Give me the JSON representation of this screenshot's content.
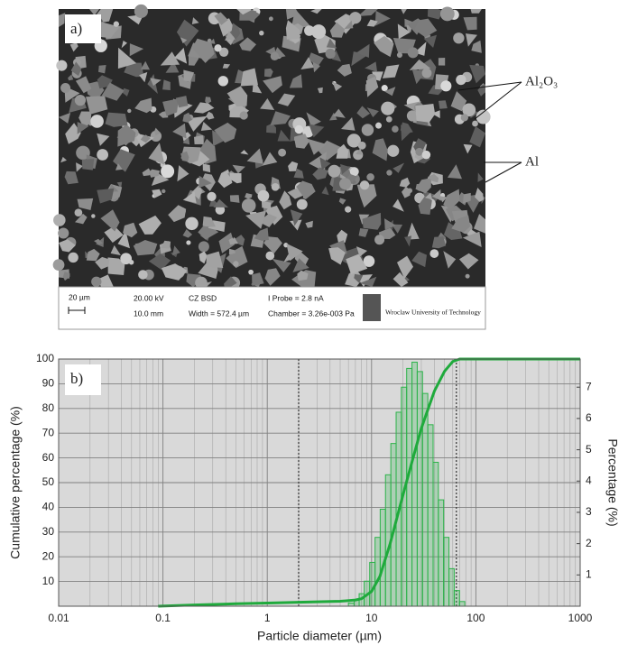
{
  "image_panel": {
    "label": "a)",
    "annotations": [
      "Al₂O₃",
      "Al"
    ],
    "info_bar": {
      "scale": "20 µm",
      "voltage": "20.00 kV",
      "distance": "10.0 mm",
      "detector": "CZ BSD",
      "width": "Width = 572.4 µm",
      "probe": "I Probe =  2.8 nA",
      "chamber": "Chamber = 3.26e-003 Pa",
      "institution": "Wroclaw University of Technology"
    }
  },
  "chart_data": {
    "type": "histogram",
    "label": "b)",
    "xlabel": "Particle diameter (µm)",
    "ylabel": "Cumulative percentage (%)",
    "y2label": "Percentage (%)",
    "xscale": "log",
    "xlim": [
      0.01,
      1000
    ],
    "xticks": [
      0.01,
      0.1,
      1,
      10,
      100,
      1000
    ],
    "ylim": [
      0,
      100
    ],
    "yticks": [
      10,
      20,
      30,
      40,
      50,
      60,
      70,
      80,
      90,
      100
    ],
    "y2lim": [
      0,
      7.9
    ],
    "y2ticks": [
      1,
      2,
      3,
      4,
      5,
      6,
      7
    ],
    "grid": true,
    "reference_lines": [
      2,
      65
    ],
    "series": [
      {
        "type": "histogram",
        "axis": "y2",
        "color": "#2db34a",
        "bins": [
          6.0,
          6.8,
          7.6,
          8.5,
          9.6,
          10.8,
          12.1,
          13.6,
          15.3,
          17.2,
          19.3,
          21.7,
          24.4,
          27.4,
          30.8,
          34.6,
          38.9,
          43.7,
          49.1,
          55.2,
          62.0,
          69.7,
          78.3
        ],
        "values": [
          0.1,
          0.2,
          0.4,
          0.8,
          1.4,
          2.2,
          3.1,
          4.2,
          5.2,
          6.2,
          7.0,
          7.6,
          7.8,
          7.5,
          6.8,
          5.8,
          4.6,
          3.4,
          2.2,
          1.2,
          0.5,
          0.15
        ]
      },
      {
        "type": "line",
        "color": "#1faa3c",
        "x": [
          0.09,
          0.2,
          0.5,
          1,
          2,
          5,
          7,
          8,
          10,
          12,
          15,
          20,
          25,
          30,
          40,
          50,
          60,
          70,
          100,
          1000
        ],
        "values": [
          0,
          0.5,
          1,
          1.3,
          1.6,
          2,
          2.5,
          3,
          6,
          12,
          25,
          45,
          60,
          72,
          87,
          95,
          99,
          100,
          100,
          100
        ]
      }
    ]
  }
}
